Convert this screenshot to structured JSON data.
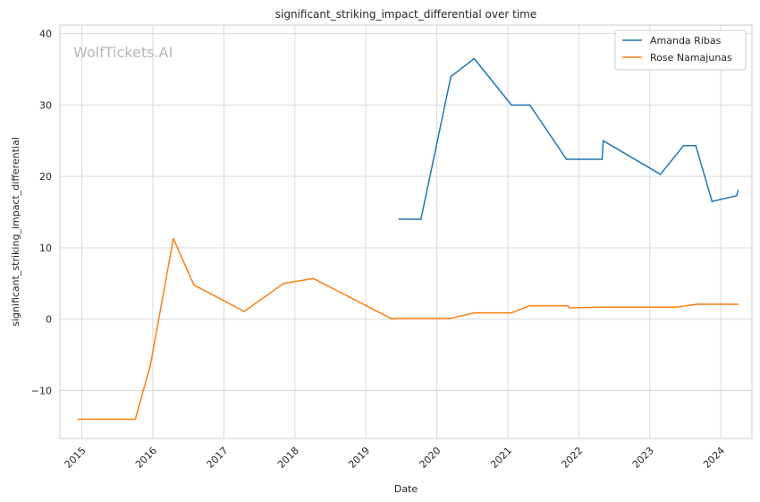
{
  "watermark": "WolfTickets.AI",
  "chart_data": {
    "type": "line",
    "title": "significant_striking_impact_differential over time",
    "xlabel": "Date",
    "ylabel": "significant_striking_impact_differential",
    "xlim": [
      "2014-09-10",
      "2024-06-10"
    ],
    "ylim": [
      -16.7,
      41.2
    ],
    "x_ticks": [
      {
        "date": "2015-01-01",
        "label": "2015"
      },
      {
        "date": "2016-01-01",
        "label": "2016"
      },
      {
        "date": "2017-01-01",
        "label": "2017"
      },
      {
        "date": "2018-01-01",
        "label": "2018"
      },
      {
        "date": "2019-01-01",
        "label": "2019"
      },
      {
        "date": "2020-01-01",
        "label": "2020"
      },
      {
        "date": "2021-01-01",
        "label": "2021"
      },
      {
        "date": "2022-01-01",
        "label": "2022"
      },
      {
        "date": "2023-01-01",
        "label": "2023"
      },
      {
        "date": "2024-01-01",
        "label": "2024"
      }
    ],
    "y_ticks": [
      {
        "value": -10,
        "label": "−10"
      },
      {
        "value": 0,
        "label": "0"
      },
      {
        "value": 10,
        "label": "10"
      },
      {
        "value": 20,
        "label": "20"
      },
      {
        "value": 30,
        "label": "30"
      },
      {
        "value": 40,
        "label": "40"
      }
    ],
    "grid": true,
    "legend_position": "top-right",
    "series": [
      {
        "name": "Amanda Ribas",
        "color": "#1f77b4",
        "points": [
          {
            "x": "2019-06-22",
            "y": 14.0
          },
          {
            "x": "2019-10-12",
            "y": 14.0
          },
          {
            "x": "2020-03-14",
            "y": 34.0
          },
          {
            "x": "2020-07-12",
            "y": 36.5
          },
          {
            "x": "2021-01-20",
            "y": 30.0
          },
          {
            "x": "2021-04-24",
            "y": 30.0
          },
          {
            "x": "2021-10-30",
            "y": 22.4
          },
          {
            "x": "2022-05-01",
            "y": 22.4
          },
          {
            "x": "2022-05-07",
            "y": 25.0
          },
          {
            "x": "2023-02-25",
            "y": 20.3
          },
          {
            "x": "2023-06-24",
            "y": 24.3
          },
          {
            "x": "2023-08-26",
            "y": 24.3
          },
          {
            "x": "2023-11-18",
            "y": 16.5
          },
          {
            "x": "2024-03-23",
            "y": 17.3
          },
          {
            "x": "2024-03-30",
            "y": 18.0
          }
        ]
      },
      {
        "name": "Rose Namajunas",
        "color": "#ff7f0e",
        "points": [
          {
            "x": "2014-12-12",
            "y": -14.0
          },
          {
            "x": "2015-10-03",
            "y": -14.0
          },
          {
            "x": "2015-12-19",
            "y": -6.5
          },
          {
            "x": "2016-04-16",
            "y": 11.3
          },
          {
            "x": "2016-07-30",
            "y": 4.8
          },
          {
            "x": "2017-04-15",
            "y": 1.1
          },
          {
            "x": "2017-11-04",
            "y": 5.0
          },
          {
            "x": "2018-04-07",
            "y": 5.7
          },
          {
            "x": "2019-05-11",
            "y": 0.1
          },
          {
            "x": "2020-03-07",
            "y": 0.1
          },
          {
            "x": "2020-07-12",
            "y": 0.9
          },
          {
            "x": "2021-01-20",
            "y": 0.9
          },
          {
            "x": "2021-04-24",
            "y": 1.9
          },
          {
            "x": "2021-11-06",
            "y": 1.9
          },
          {
            "x": "2021-11-13",
            "y": 1.6
          },
          {
            "x": "2022-05-07",
            "y": 1.7
          },
          {
            "x": "2023-05-20",
            "y": 1.7
          },
          {
            "x": "2023-09-02",
            "y": 2.1
          },
          {
            "x": "2024-03-30",
            "y": 2.1
          }
        ]
      }
    ]
  }
}
